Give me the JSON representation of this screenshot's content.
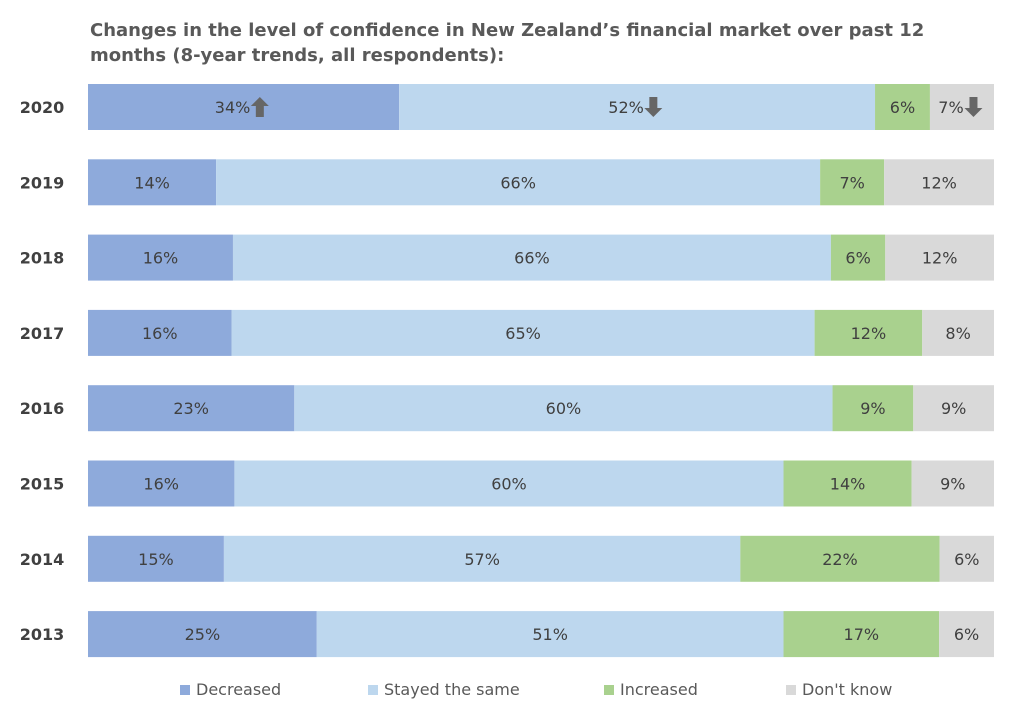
{
  "chart_data": {
    "type": "bar",
    "orientation": "horizontal",
    "stacked": true,
    "title": "Changes in the level of confidence in New Zealand’s financial market over past 12 months (8-year trends, all respondents):",
    "categories": [
      "2020",
      "2019",
      "2018",
      "2017",
      "2016",
      "2015",
      "2014",
      "2013"
    ],
    "series": [
      {
        "name": "Decreased",
        "color": "#8eaadb",
        "values": [
          34,
          14,
          16,
          16,
          23,
          16,
          15,
          25
        ]
      },
      {
        "name": "Stayed the same",
        "color": "#bdd7ee",
        "values": [
          52,
          66,
          66,
          65,
          60,
          60,
          57,
          51
        ]
      },
      {
        "name": "Increased",
        "color": "#a9d18e",
        "values": [
          6,
          7,
          6,
          12,
          9,
          14,
          22,
          17
        ]
      },
      {
        "name": "Don't know",
        "color": "#d9d9d9",
        "values": [
          7,
          12,
          12,
          8,
          9,
          9,
          6,
          6
        ]
      }
    ],
    "annotations": [
      {
        "category": "2020",
        "series": "Decreased",
        "icon": "arrow-up-icon"
      },
      {
        "category": "2020",
        "series": "Stayed the same",
        "icon": "arrow-down-icon"
      },
      {
        "category": "2020",
        "series": "Don't know",
        "icon": "arrow-down-icon"
      }
    ],
    "legend_position": "bottom",
    "grid": false,
    "value_suffix": "%"
  }
}
